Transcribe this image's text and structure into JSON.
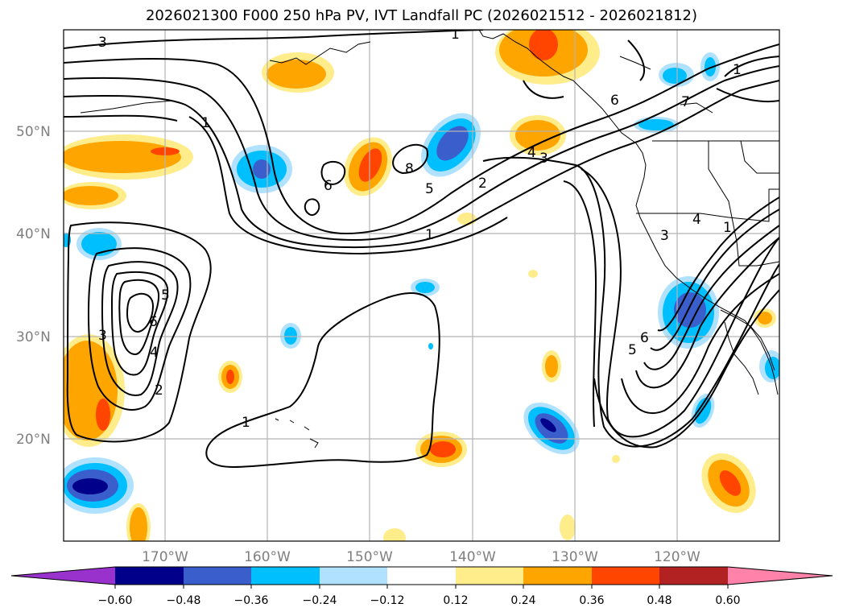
{
  "title": "2026021300 F000 250 hPa PV, IVT Landfall PC (2026021512 - 2026021812)",
  "map": {
    "lat_labels": [
      "50°N",
      "40°N",
      "30°N",
      "20°N"
    ],
    "lon_labels": [
      "170°W",
      "160°W",
      "150°W",
      "140°W",
      "130°W",
      "120°W"
    ],
    "contour_labels": [
      "3",
      "1",
      "1",
      "6",
      "8",
      "5",
      "2",
      "1",
      "4",
      "3",
      "6",
      "7",
      "1",
      "3",
      "5",
      "6",
      "4",
      "2",
      "1",
      "3",
      "4",
      "1",
      "5",
      "6"
    ]
  },
  "colorbar": {
    "ticks": [
      "−0.60",
      "−0.48",
      "−0.36",
      "−0.24",
      "−0.12",
      "0.12",
      "0.24",
      "0.36",
      "0.48",
      "0.60"
    ],
    "colors": [
      "#9932cc",
      "#00008b",
      "#3a5fcd",
      "#00bfff",
      "#b0e2ff",
      "#ffffff",
      "#ffec8b",
      "#ffa500",
      "#ff4500",
      "#b22222",
      "#ff82ab"
    ]
  }
}
